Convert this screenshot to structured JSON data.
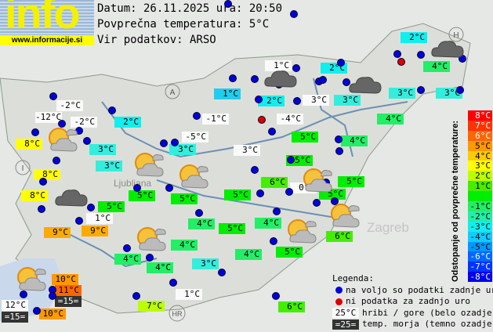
{
  "logo": {
    "text": "info",
    "url": "www.informacije.si"
  },
  "header": {
    "date_line": "Datum: 26.11.2025 ura: 20:50",
    "avg_line": "Povprečna temperatura: 5°C",
    "source_line": "Vir podatkov: ARSO"
  },
  "colors": {
    "station_ok": "#0000dd",
    "station_missing": "#dd0000"
  },
  "stations": [
    {
      "t": "1°C",
      "c": "#22ccee"
    },
    {
      "t": "-2°C",
      "c": "hill"
    },
    {
      "t": "-12°C",
      "c": "hill"
    },
    {
      "t": "-2°C",
      "c": "hill"
    },
    {
      "t": "2°C",
      "c": "#11eeee"
    },
    {
      "t": "8°C",
      "c": "#ffff00"
    },
    {
      "t": "3°C",
      "c": "#33eedd"
    },
    {
      "t": "-1°C",
      "c": "hill"
    },
    {
      "t": "-5°C",
      "c": "hill"
    },
    {
      "t": "3°C",
      "c": "#33eedd"
    },
    {
      "t": "3°C",
      "c": "hill"
    },
    {
      "t": "3°C",
      "c": "#33eedd"
    },
    {
      "t": "8°C",
      "c": "#ffff00"
    },
    {
      "t": "8°C",
      "c": "#ffff00"
    },
    {
      "t": "5°C",
      "c": "#00ee00"
    },
    {
      "t": "5°C",
      "c": "#00ee00"
    },
    {
      "t": "5°C",
      "c": "#00ee00"
    },
    {
      "t": "5°C",
      "c": "#00ee00"
    },
    {
      "t": "1°C",
      "c": "hill"
    },
    {
      "t": "9°C",
      "c": "#ffaa00"
    },
    {
      "t": "9°C",
      "c": "#ffaa00"
    },
    {
      "t": "4°C",
      "c": "#22ee66"
    },
    {
      "t": "5°C",
      "c": "#00ee00"
    },
    {
      "t": "4°C",
      "c": "#22ee66"
    },
    {
      "t": "4°C",
      "c": "#22ee66"
    },
    {
      "t": "4°C",
      "c": "#22ee66"
    },
    {
      "t": "4°C",
      "c": "#22ee66"
    },
    {
      "t": "3°C",
      "c": "#33eedd"
    },
    {
      "t": "10°C",
      "c": "#ff9900"
    },
    {
      "t": "11°C",
      "c": "#ff6600"
    },
    {
      "t": "=15=",
      "c": "sea"
    },
    {
      "t": "12°C",
      "c": "hill"
    },
    {
      "t": "=15=",
      "c": "sea"
    },
    {
      "t": "10°C",
      "c": "#ff9900"
    },
    {
      "t": "7°C",
      "c": "#bbff00"
    },
    {
      "t": "1°C",
      "c": "hill"
    },
    {
      "t": "2°C",
      "c": "#11eeee"
    },
    {
      "t": "1°C",
      "c": "hill"
    },
    {
      "t": "2°C",
      "c": "#11eeee"
    },
    {
      "t": "4°C",
      "c": "#22ee66"
    },
    {
      "t": "2°C",
      "c": "#11eeee"
    },
    {
      "t": "3°C",
      "c": "hill"
    },
    {
      "t": "3°C",
      "c": "#33eedd"
    },
    {
      "t": "3°C",
      "c": "#33eedd"
    },
    {
      "t": "3°C",
      "c": "#33eedd"
    },
    {
      "t": "4°C",
      "c": "#22ee66"
    },
    {
      "t": "-4°C",
      "c": "hill"
    },
    {
      "t": "5°C",
      "c": "#00ee00"
    },
    {
      "t": "4°C",
      "c": "#22ee66"
    },
    {
      "t": "5°C",
      "c": "#00ee00"
    },
    {
      "t": "6°C",
      "c": "#44ee00"
    },
    {
      "t": "0°C",
      "c": "hill"
    },
    {
      "t": "5°C",
      "c": "#00ee00"
    },
    {
      "t": "5°C",
      "c": "#00ee00"
    },
    {
      "t": "4°C",
      "c": "#22ee66"
    },
    {
      "t": "6°C",
      "c": "#44ee00"
    },
    {
      "t": "5°C",
      "c": "#00ee00"
    },
    {
      "t": "6°C",
      "c": "#44ee00"
    }
  ],
  "weather_icons": [
    "cloudy",
    "cloudy",
    "cloudy",
    "cloudy",
    "partly-sunny",
    "partly-sunny",
    "partly-sunny",
    "partly-sunny",
    "partly-sunny",
    "partly-sunny",
    "partly-sunny",
    "partly-sunny"
  ],
  "scale": {
    "title": "Odstopanje od povprečne temperature:",
    "rows": [
      {
        "t": "8°C",
        "c": "#ff0000",
        "f": "#fff"
      },
      {
        "t": "7°C",
        "c": "#ff3300",
        "f": "#fff"
      },
      {
        "t": "6°C",
        "c": "#ff6600",
        "f": "#fff"
      },
      {
        "t": "5°C",
        "c": "#ff9900",
        "f": "#000"
      },
      {
        "t": "4°C",
        "c": "#ffcc00",
        "f": "#000"
      },
      {
        "t": "3°C",
        "c": "#ffff00",
        "f": "#000"
      },
      {
        "t": "2°C",
        "c": "#bbff00",
        "f": "#000"
      },
      {
        "t": "1°C",
        "c": "#44ee00",
        "f": "#000"
      },
      {
        "t": "",
        "c": "#00ee00",
        "f": "#000"
      },
      {
        "t": "-1°C",
        "c": "#22ee66",
        "f": "#000"
      },
      {
        "t": "-2°C",
        "c": "#22eeaa",
        "f": "#000"
      },
      {
        "t": "-3°C",
        "c": "#11eeee",
        "f": "#000"
      },
      {
        "t": "-4°C",
        "c": "#11ccff",
        "f": "#000"
      },
      {
        "t": "-5°C",
        "c": "#0099ff",
        "f": "#000"
      },
      {
        "t": "-6°C",
        "c": "#0066ff",
        "f": "#fff"
      },
      {
        "t": "-7°C",
        "c": "#0033ff",
        "f": "#fff"
      },
      {
        "t": "-8°C",
        "c": "#0000ee",
        "f": "#fff"
      }
    ]
  },
  "legend": {
    "title": "Legenda:",
    "ok": "na voljo so podatki zadnje ure",
    "missing": "ni podatka za zadnjo uro",
    "hill_sample": "25°C",
    "hill": "hribi / gore (belo ozadje)",
    "sea_sample": "=25=",
    "sea": "temp. morja (temno ozadje)"
  },
  "map_labels": {
    "austria": "A",
    "hungary": "H",
    "italy": "I",
    "croatia": "HR",
    "ljubljana": "Ljubljana",
    "zagreb": "Zagreb"
  }
}
